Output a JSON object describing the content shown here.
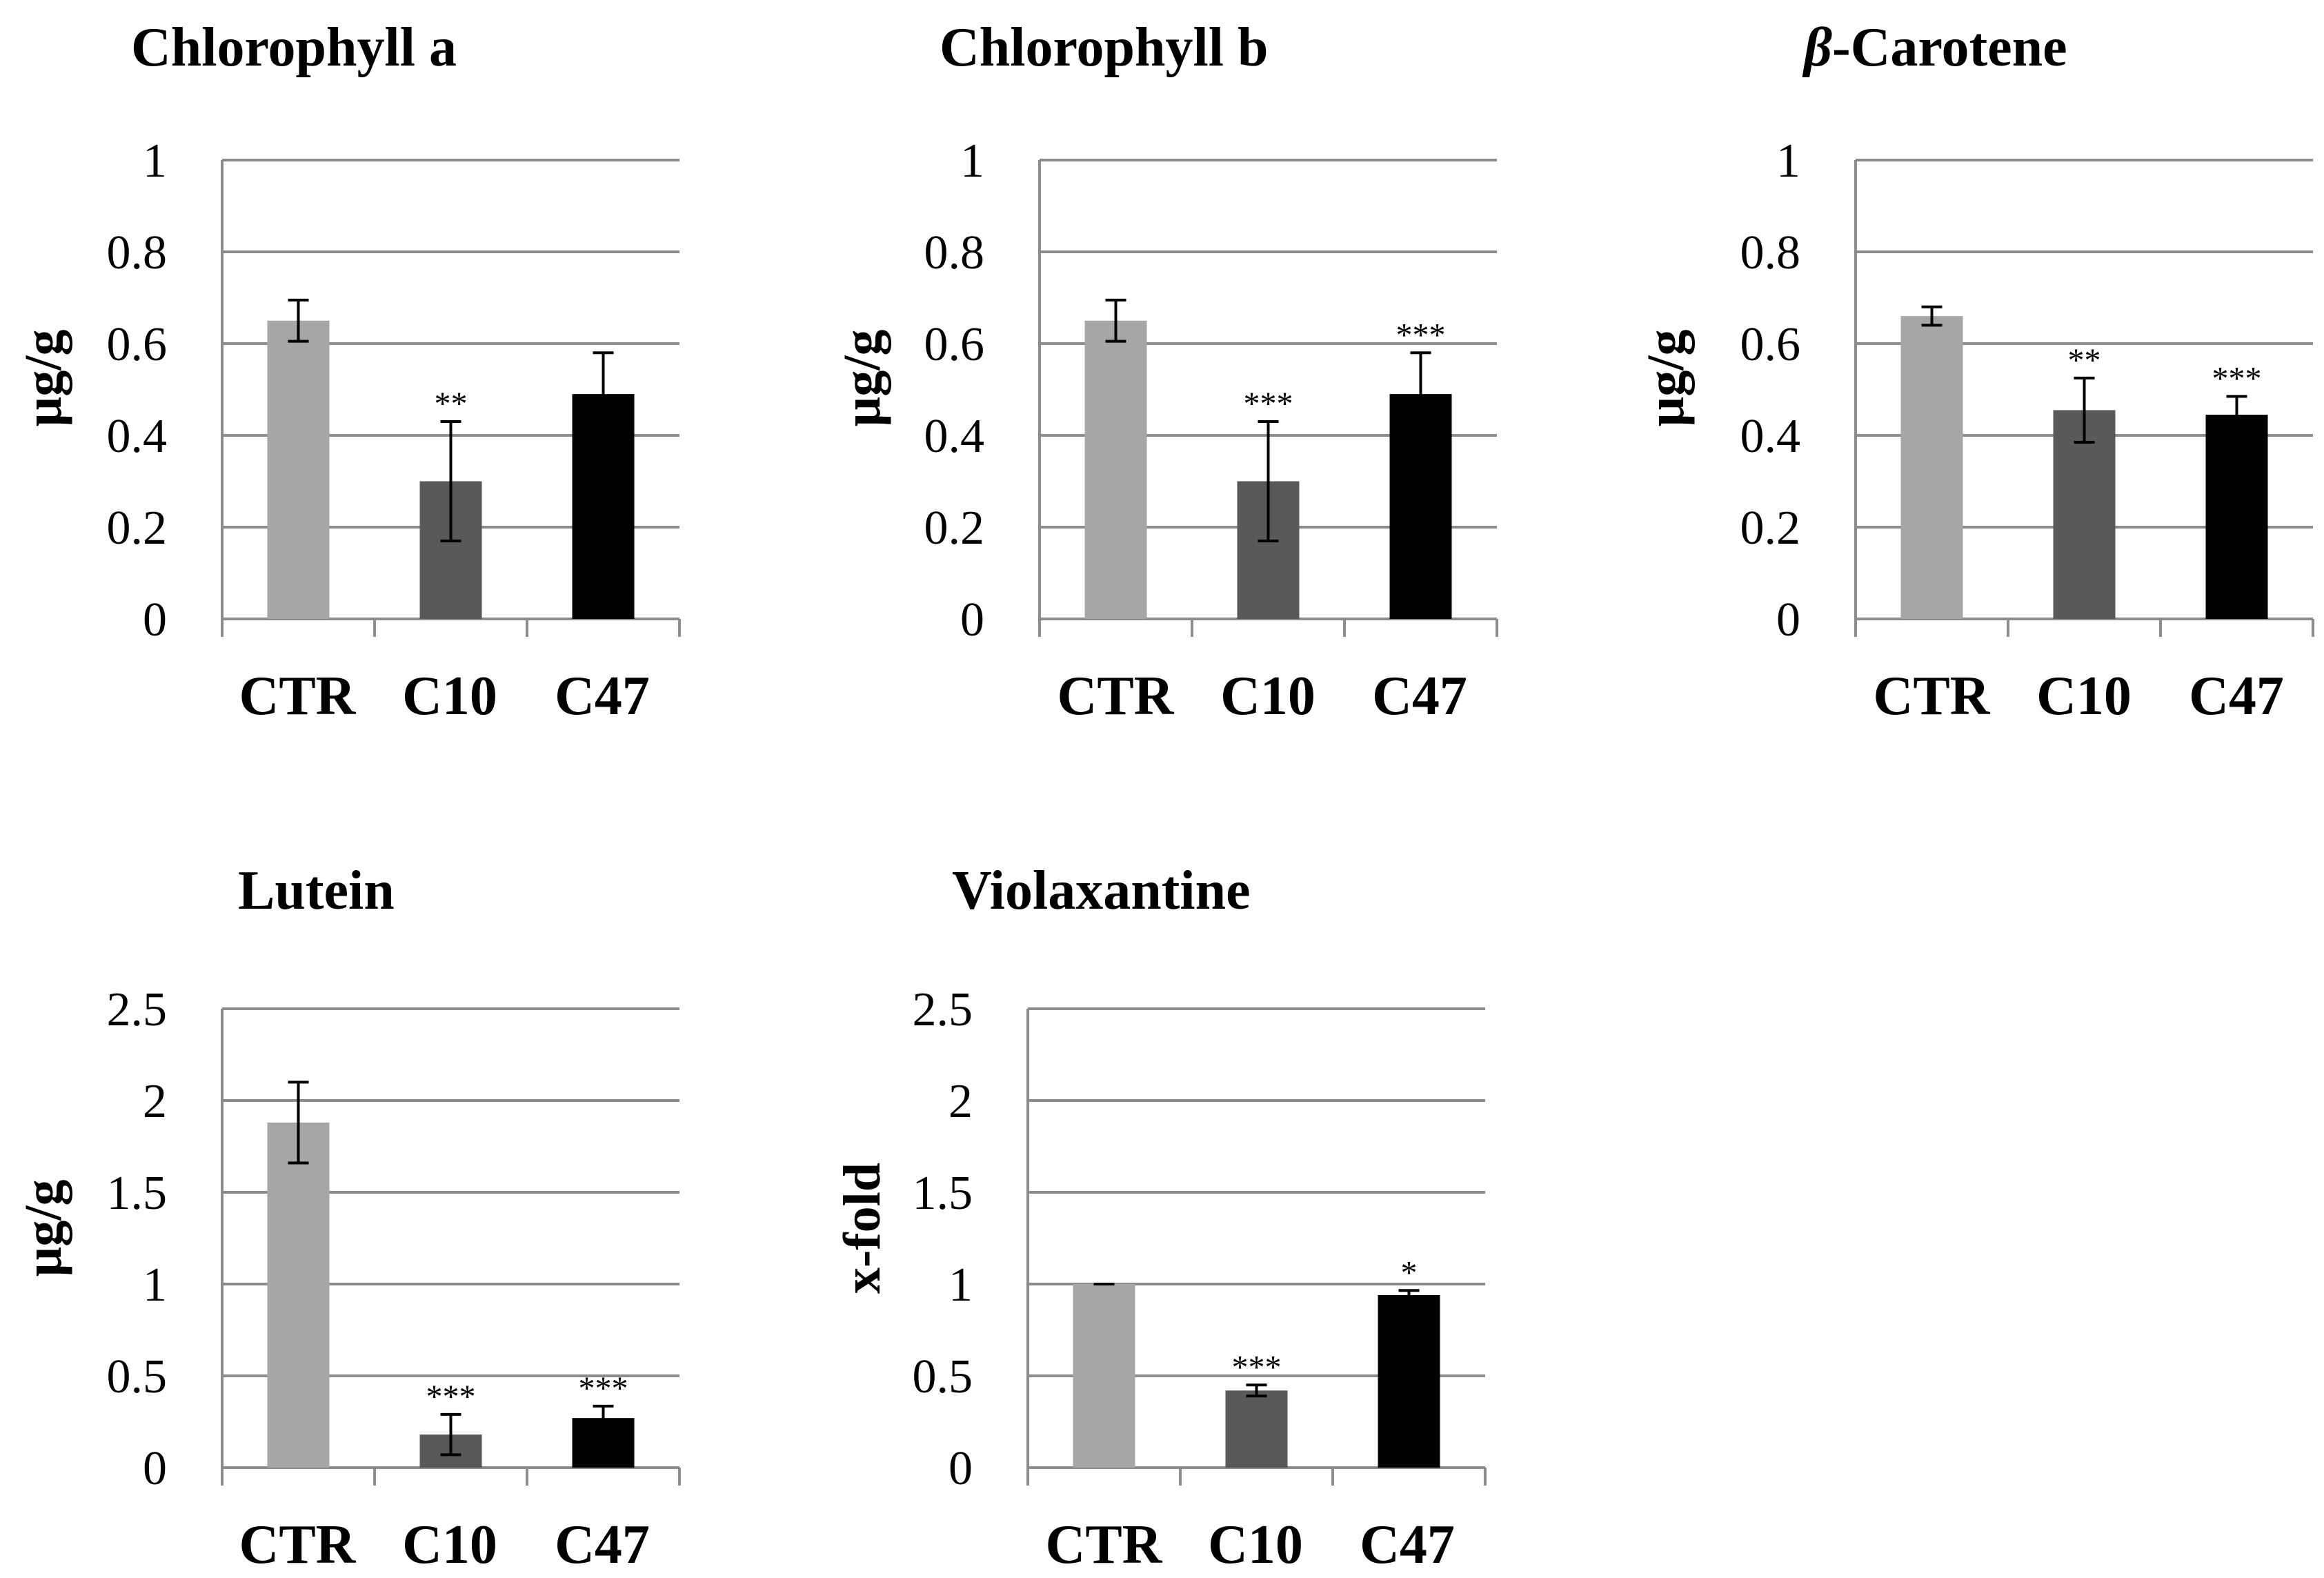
{
  "colors": {
    "CTR": "#a6a6a6",
    "C10": "#595959",
    "C47": "#000000",
    "grid": "#8c8c8c"
  },
  "chart_data": [
    {
      "type": "bar",
      "title": "Chlorophyll a",
      "ylabel": "µg/g",
      "ylim": [
        0,
        1
      ],
      "yticks": [
        "0",
        "0.2",
        "0.4",
        "0.6",
        "0.8",
        "1"
      ],
      "categories": [
        "CTR",
        "C10",
        "C47"
      ],
      "values": [
        0.65,
        0.3,
        0.49
      ],
      "errors": [
        0.045,
        0.13,
        0.09
      ],
      "significance": [
        "",
        "**",
        ""
      ]
    },
    {
      "type": "bar",
      "title": "Chlorophyll b",
      "ylabel": "µg/g",
      "ylim": [
        0,
        1
      ],
      "yticks": [
        "0",
        "0.2",
        "0.4",
        "0.6",
        "0.8",
        "1"
      ],
      "categories": [
        "CTR",
        "C10",
        "C47"
      ],
      "values": [
        0.65,
        0.3,
        0.49
      ],
      "errors": [
        0.045,
        0.13,
        0.09
      ],
      "significance": [
        "",
        "***",
        "***"
      ]
    },
    {
      "type": "bar",
      "title_symbol": "β",
      "title_rest": "-Carotene",
      "ylabel": "µg/g",
      "ylim": [
        0,
        1
      ],
      "yticks": [
        "0",
        "0.2",
        "0.4",
        "0.6",
        "0.8",
        "1"
      ],
      "categories": [
        "CTR",
        "C10",
        "C47"
      ],
      "values": [
        0.66,
        0.455,
        0.445
      ],
      "errors": [
        0.02,
        0.07,
        0.04
      ],
      "significance": [
        "",
        "**",
        "***"
      ]
    },
    {
      "type": "bar",
      "title": "Lutein",
      "ylabel": "µg/g",
      "ylim": [
        0,
        2.5
      ],
      "yticks": [
        "0",
        "0.5",
        "1",
        "1.5",
        "2",
        "2.5"
      ],
      "categories": [
        "CTR",
        "C10",
        "C47"
      ],
      "values": [
        1.88,
        0.18,
        0.27
      ],
      "errors": [
        0.22,
        0.11,
        0.065
      ],
      "significance": [
        "",
        "***",
        "***"
      ]
    },
    {
      "type": "bar",
      "title": "Violaxantine",
      "ylabel": "x-fold",
      "ylim": [
        0,
        2.5
      ],
      "yticks": [
        "0",
        "0.5",
        "1",
        "1.5",
        "2",
        "2.5"
      ],
      "categories": [
        "CTR",
        "C10",
        "C47"
      ],
      "values": [
        1.0,
        0.42,
        0.94
      ],
      "errors": [
        0.0,
        0.03,
        0.025
      ],
      "significance": [
        "",
        "***",
        "*"
      ]
    }
  ]
}
